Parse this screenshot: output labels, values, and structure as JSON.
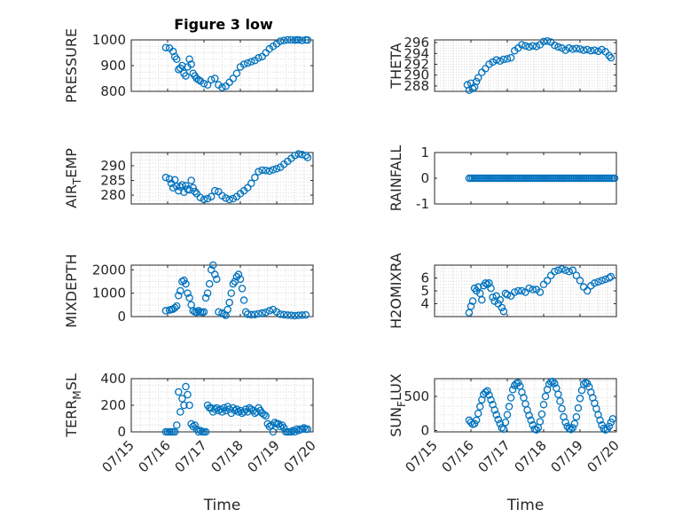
{
  "figure": {
    "title": "Figure 3 low",
    "xlabel": "Time"
  },
  "style": {
    "marker_color": "#0072BD",
    "axis_color": "#262626",
    "grid_color": "#d9d9d9"
  },
  "chart_data": [
    {
      "type": "scatter",
      "ylabel": "PRESSURE",
      "title": "Figure 3 low",
      "xlim": [
        "07/15",
        "07/20"
      ],
      "xticks": [
        "07/15",
        "07/16",
        "07/17",
        "07/18",
        "07/19",
        "07/20"
      ],
      "show_xticklabels": false,
      "ylim": [
        800,
        1000
      ],
      "yticks": [
        800,
        900,
        1000
      ],
      "grid": true,
      "x": [
        0.95,
        1.05,
        1.15,
        1.2,
        1.25,
        1.3,
        1.35,
        1.4,
        1.45,
        1.5,
        1.55,
        1.6,
        1.65,
        1.7,
        1.75,
        1.8,
        1.85,
        1.9,
        2.0,
        2.1,
        2.2,
        2.3,
        2.4,
        2.5,
        2.6,
        2.7,
        2.8,
        2.9,
        3.0,
        3.1,
        3.2,
        3.3,
        3.4,
        3.5,
        3.6,
        3.7,
        3.8,
        3.9,
        4.0,
        4.1,
        4.2,
        4.3,
        4.4,
        4.5,
        4.55,
        4.6,
        4.7,
        4.8,
        4.85
      ],
      "y": [
        970,
        968,
        955,
        935,
        925,
        885,
        890,
        900,
        870,
        860,
        895,
        925,
        905,
        870,
        860,
        850,
        845,
        840,
        830,
        825,
        845,
        850,
        825,
        815,
        820,
        835,
        850,
        870,
        895,
        905,
        910,
        915,
        920,
        930,
        935,
        950,
        965,
        975,
        985,
        995,
        998,
        1000,
        1000,
        999,
        1000,
        1000,
        998,
        1000,
        999
      ]
    },
    {
      "type": "scatter",
      "ylabel": "THETA",
      "xlim": [
        "07/15",
        "07/20"
      ],
      "xticks": [
        "07/15",
        "07/16",
        "07/17",
        "07/18",
        "07/19",
        "07/20"
      ],
      "show_xticklabels": false,
      "ylim": [
        287,
        296.5
      ],
      "yticks": [
        288,
        290,
        292,
        294,
        296
      ],
      "grid": true,
      "x": [
        0.9,
        0.95,
        1.0,
        1.05,
        1.1,
        1.15,
        1.2,
        1.3,
        1.4,
        1.5,
        1.6,
        1.7,
        1.8,
        1.9,
        2.0,
        2.1,
        2.2,
        2.3,
        2.4,
        2.5,
        2.6,
        2.7,
        2.8,
        2.9,
        3.0,
        3.1,
        3.2,
        3.3,
        3.4,
        3.5,
        3.6,
        3.7,
        3.8,
        3.9,
        4.0,
        4.1,
        4.2,
        4.3,
        4.4,
        4.5,
        4.6,
        4.7,
        4.8,
        4.85
      ],
      "y": [
        288.2,
        287.2,
        288.5,
        287.5,
        287.8,
        288.8,
        289.5,
        290.5,
        291.2,
        292,
        292.4,
        292.8,
        292.6,
        292.9,
        293,
        293.2,
        294.5,
        295,
        295.6,
        295.4,
        295.2,
        295.4,
        295.3,
        295.6,
        296.2,
        296.3,
        296.1,
        295.5,
        295.2,
        295,
        294.6,
        295,
        294.8,
        294.9,
        294.8,
        294.6,
        294.7,
        294.5,
        294.6,
        294.4,
        294.7,
        294.3,
        293.6,
        293.2
      ]
    },
    {
      "type": "scatter",
      "ylabel": "AIR_TEMP",
      "ylabel_main": "AIR",
      "ylabel_sub": "T",
      "ylabel_rest": "EMP",
      "xlim": [
        "07/15",
        "07/20"
      ],
      "xticks": [
        "07/15",
        "07/16",
        "07/17",
        "07/18",
        "07/19",
        "07/20"
      ],
      "show_xticklabels": false,
      "ylim": [
        277,
        294.5
      ],
      "yticks": [
        280,
        285,
        290
      ],
      "grid": true,
      "x": [
        0.95,
        1.05,
        1.1,
        1.15,
        1.2,
        1.25,
        1.3,
        1.35,
        1.4,
        1.45,
        1.5,
        1.55,
        1.6,
        1.65,
        1.7,
        1.75,
        1.8,
        1.9,
        2.0,
        2.1,
        2.2,
        2.3,
        2.4,
        2.5,
        2.6,
        2.7,
        2.8,
        2.9,
        3.0,
        3.1,
        3.2,
        3.3,
        3.4,
        3.5,
        3.6,
        3.7,
        3.8,
        3.9,
        4.0,
        4.1,
        4.2,
        4.3,
        4.4,
        4.5,
        4.6,
        4.7,
        4.8,
        4.85
      ],
      "y": [
        286,
        285.5,
        284,
        282.5,
        285.2,
        283,
        281.5,
        282.8,
        283.5,
        281,
        283.2,
        282,
        281.8,
        285,
        282.5,
        281.2,
        280.5,
        279.2,
        278.5,
        278.8,
        279.5,
        281.5,
        281.2,
        279.8,
        279,
        278.5,
        278.8,
        279.5,
        280.5,
        281.5,
        282.5,
        284,
        286,
        288,
        288.5,
        288.4,
        288.2,
        288.6,
        289,
        289.5,
        290.5,
        291.5,
        292.5,
        293.5,
        294,
        293.8,
        293.5,
        292.8
      ]
    },
    {
      "type": "scatter",
      "ylabel": "RAINFALL",
      "xlim": [
        "07/15",
        "07/20"
      ],
      "xticks": [
        "07/15",
        "07/16",
        "07/17",
        "07/18",
        "07/19",
        "07/20"
      ],
      "show_xticklabels": false,
      "ylim": [
        -1,
        1
      ],
      "yticks": [
        -1,
        0,
        1
      ],
      "grid": false,
      "x": [
        0.95,
        1.0,
        1.05,
        1.1,
        1.15,
        1.2,
        1.25,
        1.3,
        1.35,
        1.4,
        1.45,
        1.5,
        1.55,
        1.6,
        1.65,
        1.7,
        1.75,
        1.8,
        1.85,
        1.9,
        1.95,
        2.0,
        2.05,
        2.1,
        2.15,
        2.2,
        2.25,
        2.3,
        2.35,
        2.4,
        2.45,
        2.5,
        2.55,
        2.6,
        2.65,
        2.7,
        2.75,
        2.8,
        2.85,
        2.9,
        2.95,
        3.0,
        3.05,
        3.1,
        3.15,
        3.2,
        3.25,
        3.3,
        3.35,
        3.4,
        3.45,
        3.5,
        3.55,
        3.6,
        3.65,
        3.7,
        3.75,
        3.8,
        3.85,
        3.9,
        3.95,
        4.0,
        4.05,
        4.1,
        4.15,
        4.2,
        4.25,
        4.3,
        4.35,
        4.4,
        4.45,
        4.5,
        4.55,
        4.6,
        4.65,
        4.7,
        4.75,
        4.8,
        4.85,
        4.9,
        4.95
      ],
      "y": [
        0,
        0,
        0,
        0,
        0,
        0,
        0,
        0,
        0,
        0,
        0,
        0,
        0,
        0,
        0,
        0,
        0,
        0,
        0,
        0,
        0,
        0,
        0,
        0,
        0,
        0,
        0,
        0,
        0,
        0,
        0,
        0,
        0,
        0,
        0,
        0,
        0,
        0,
        0,
        0,
        0,
        0,
        0,
        0,
        0,
        0,
        0,
        0,
        0,
        0,
        0,
        0,
        0,
        0,
        0,
        0,
        0,
        0,
        0,
        0,
        0,
        0,
        0,
        0,
        0,
        0,
        0,
        0,
        0,
        0,
        0,
        0,
        0,
        0,
        0,
        0,
        0,
        0,
        0,
        0,
        0
      ]
    },
    {
      "type": "scatter",
      "ylabel": "MIXDEPTH",
      "xlim": [
        "07/15",
        "07/20"
      ],
      "xticks": [
        "07/15",
        "07/16",
        "07/17",
        "07/18",
        "07/19",
        "07/20"
      ],
      "show_xticklabels": false,
      "ylim": [
        0,
        2200
      ],
      "yticks": [
        0,
        1000,
        2000
      ],
      "grid": true,
      "x": [
        0.95,
        1.05,
        1.1,
        1.15,
        1.2,
        1.25,
        1.3,
        1.35,
        1.4,
        1.45,
        1.5,
        1.55,
        1.6,
        1.65,
        1.7,
        1.75,
        1.8,
        1.85,
        1.9,
        1.95,
        2.0,
        2.05,
        2.1,
        2.15,
        2.2,
        2.25,
        2.3,
        2.35,
        2.4,
        2.5,
        2.55,
        2.6,
        2.65,
        2.7,
        2.75,
        2.8,
        2.85,
        2.9,
        2.95,
        3.0,
        3.05,
        3.1,
        3.15,
        3.2,
        3.3,
        3.4,
        3.5,
        3.6,
        3.7,
        3.8,
        3.9,
        4.0,
        4.1,
        4.2,
        4.3,
        4.4,
        4.5,
        4.6,
        4.7,
        4.8
      ],
      "y": [
        250,
        280,
        300,
        320,
        380,
        450,
        900,
        1100,
        1500,
        1550,
        1400,
        1000,
        800,
        500,
        250,
        200,
        180,
        250,
        200,
        180,
        200,
        800,
        1000,
        1400,
        2000,
        2200,
        1800,
        1600,
        200,
        150,
        100,
        50,
        300,
        600,
        1000,
        1400,
        1500,
        1700,
        1800,
        1600,
        1200,
        700,
        200,
        100,
        80,
        90,
        120,
        150,
        180,
        250,
        300,
        200,
        100,
        80,
        60,
        50,
        40,
        50,
        60,
        70
      ]
    },
    {
      "type": "scatter",
      "ylabel": "H2OMIXRA",
      "xlim": [
        "07/15",
        "07/20"
      ],
      "xticks": [
        "07/15",
        "07/16",
        "07/17",
        "07/18",
        "07/19",
        "07/20"
      ],
      "show_xticklabels": false,
      "ylim": [
        3,
        7
      ],
      "yticks": [
        4,
        5,
        6
      ],
      "grid": true,
      "x": [
        0.95,
        1.0,
        1.05,
        1.1,
        1.15,
        1.2,
        1.25,
        1.3,
        1.35,
        1.4,
        1.45,
        1.5,
        1.55,
        1.6,
        1.65,
        1.7,
        1.75,
        1.8,
        1.85,
        1.9,
        1.95,
        2.0,
        2.1,
        2.2,
        2.3,
        2.4,
        2.5,
        2.6,
        2.7,
        2.8,
        2.9,
        3.0,
        3.1,
        3.2,
        3.3,
        3.4,
        3.5,
        3.6,
        3.7,
        3.8,
        3.9,
        4.0,
        4.1,
        4.2,
        4.3,
        4.4,
        4.5,
        4.6,
        4.7,
        4.8,
        4.85
      ],
      "y": [
        3.3,
        3.8,
        4.2,
        5.2,
        5.0,
        5.3,
        4.8,
        4.3,
        5.4,
        5.6,
        5.5,
        5.6,
        5.2,
        4.5,
        4.2,
        4.6,
        4.0,
        4.3,
        3.7,
        3.4,
        4.8,
        4.7,
        4.6,
        4.9,
        5.0,
        5.0,
        4.9,
        5.2,
        5.1,
        5.1,
        4.9,
        5.5,
        5.8,
        6.2,
        6.5,
        6.6,
        6.7,
        6.6,
        6.5,
        6.6,
        6.2,
        5.8,
        5.3,
        5.0,
        5.4,
        5.6,
        5.7,
        5.8,
        5.9,
        6.0,
        6.1
      ]
    },
    {
      "type": "scatter",
      "ylabel": "TERR_MSL",
      "ylabel_main": "TERR",
      "ylabel_sub": "M",
      "ylabel_rest": "SL",
      "xlim": [
        "07/15",
        "07/20"
      ],
      "xticks": [
        "07/15",
        "07/16",
        "07/17",
        "07/18",
        "07/19",
        "07/20"
      ],
      "xticklabels": [
        "07/15",
        "07/16",
        "07/17",
        "07/18",
        "07/19",
        "07/20"
      ],
      "show_xticklabels": true,
      "xlabel": "Time",
      "ylim": [
        0,
        400
      ],
      "yticks": [
        0,
        200,
        400
      ],
      "grid": true,
      "x": [
        0.95,
        1.0,
        1.05,
        1.1,
        1.15,
        1.2,
        1.25,
        1.3,
        1.35,
        1.4,
        1.45,
        1.5,
        1.55,
        1.6,
        1.65,
        1.7,
        1.75,
        1.8,
        1.85,
        1.9,
        1.95,
        2.0,
        2.05,
        2.1,
        2.15,
        2.2,
        2.25,
        2.3,
        2.35,
        2.4,
        2.45,
        2.5,
        2.55,
        2.6,
        2.65,
        2.7,
        2.75,
        2.8,
        2.85,
        2.9,
        2.95,
        3.0,
        3.05,
        3.1,
        3.15,
        3.2,
        3.25,
        3.3,
        3.35,
        3.4,
        3.45,
        3.5,
        3.55,
        3.6,
        3.65,
        3.7,
        3.75,
        3.8,
        3.85,
        3.9,
        3.95,
        4.0,
        4.05,
        4.1,
        4.15,
        4.2,
        4.25,
        4.3,
        4.35,
        4.4,
        4.45,
        4.5,
        4.55,
        4.6,
        4.65,
        4.7,
        4.75,
        4.8,
        4.85
      ],
      "y": [
        0,
        0,
        0,
        0,
        0,
        0,
        50,
        300,
        150,
        250,
        200,
        340,
        280,
        200,
        60,
        40,
        50,
        20,
        0,
        10,
        0,
        0,
        0,
        200,
        180,
        180,
        150,
        170,
        180,
        160,
        170,
        150,
        180,
        160,
        190,
        170,
        140,
        180,
        160,
        170,
        150,
        160,
        140,
        150,
        170,
        150,
        180,
        170,
        160,
        140,
        150,
        180,
        160,
        140,
        130,
        120,
        60,
        40,
        50,
        0,
        70,
        60,
        60,
        40,
        50,
        30,
        0,
        0,
        0,
        0,
        10,
        0,
        20,
        10,
        20,
        20,
        30,
        20,
        20
      ]
    },
    {
      "type": "scatter",
      "ylabel": "SUN_FLUX",
      "ylabel_main": "SUN",
      "ylabel_sub": "F",
      "ylabel_rest": "LUX",
      "xlim": [
        "07/15",
        "07/20"
      ],
      "xticks": [
        "07/15",
        "07/16",
        "07/17",
        "07/18",
        "07/19",
        "07/20"
      ],
      "xticklabels": [
        "07/15",
        "07/16",
        "07/17",
        "07/18",
        "07/19",
        "07/20"
      ],
      "show_xticklabels": true,
      "xlabel": "Time",
      "ylim": [
        -20,
        760
      ],
      "yticks": [
        0,
        500
      ],
      "grid": true,
      "x": [
        0.95,
        1.0,
        1.05,
        1.1,
        1.15,
        1.2,
        1.25,
        1.3,
        1.35,
        1.4,
        1.45,
        1.5,
        1.55,
        1.6,
        1.65,
        1.7,
        1.75,
        1.8,
        1.85,
        1.9,
        1.95,
        2.0,
        2.05,
        2.1,
        2.15,
        2.2,
        2.25,
        2.3,
        2.35,
        2.4,
        2.45,
        2.5,
        2.55,
        2.6,
        2.65,
        2.7,
        2.75,
        2.8,
        2.85,
        2.9,
        2.95,
        3.0,
        3.05,
        3.1,
        3.15,
        3.2,
        3.25,
        3.3,
        3.35,
        3.4,
        3.45,
        3.5,
        3.55,
        3.6,
        3.65,
        3.7,
        3.75,
        3.8,
        3.85,
        3.9,
        3.95,
        4.0,
        4.05,
        4.1,
        4.15,
        4.2,
        4.25,
        4.3,
        4.35,
        4.4,
        4.45,
        4.5,
        4.55,
        4.6,
        4.65,
        4.7,
        4.75,
        4.8,
        4.85,
        4.9
      ],
      "y": [
        150,
        120,
        90,
        100,
        150,
        250,
        350,
        450,
        530,
        560,
        580,
        520,
        450,
        380,
        300,
        230,
        160,
        100,
        40,
        20,
        120,
        230,
        350,
        480,
        600,
        660,
        690,
        700,
        650,
        560,
        480,
        390,
        300,
        220,
        150,
        80,
        20,
        10,
        40,
        130,
        240,
        380,
        500,
        600,
        680,
        710,
        720,
        690,
        620,
        530,
        430,
        320,
        200,
        120,
        60,
        30,
        15,
        40,
        100,
        200,
        330,
        470,
        590,
        680,
        700,
        690,
        640,
        560,
        480,
        400,
        320,
        230,
        150,
        80,
        30,
        10,
        20,
        60,
        120,
        170
      ]
    }
  ]
}
